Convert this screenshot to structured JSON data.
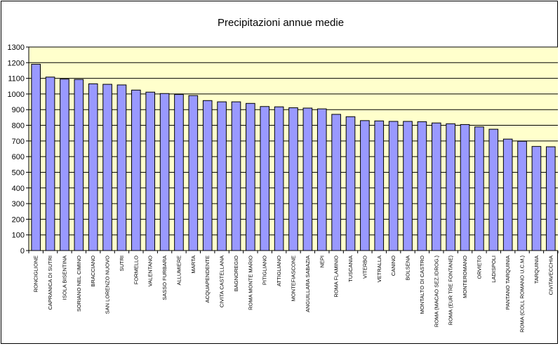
{
  "chart_data": {
    "type": "bar",
    "title": "Precipitazioni annue medie",
    "xlabel": "",
    "ylabel": "",
    "ylim": [
      0,
      1300
    ],
    "ytick_step": 100,
    "grid": true,
    "legend": "none",
    "colors": {
      "bar_fill": "#9999ff",
      "bar_stroke": "#000000",
      "plot_background": "#ffffcc",
      "gridline": "#000000"
    },
    "categories": [
      "RONCIGLIONE",
      "CAPRANICA DI SUTRI",
      "ISOLA BISENTINA",
      "SORIANO NEL CIMINO",
      "BRACCIANO",
      "SAN LORENZO NUOVO",
      "SUTRI",
      "FORMELLO",
      "VALENTANO",
      "SASSO FURBARA",
      "ALLUMIERE",
      "MARTA",
      "ACQUAPENDENTE",
      "CIVITA CASTELLANA",
      "BAGNOREGIO",
      "ROMA MONTE MARIO",
      "PITIGLIANO",
      "ATTIGLIANO",
      "MONTEFIASCONE",
      "ANGUILLARA SABAZIA",
      "NEPI",
      "ROMA FLAMINIO",
      "TUSCANIA",
      "VITERBO",
      "VETRALLA",
      "CANINO",
      "BOLSENA",
      "MONTALTO DI CASTRO",
      "ROMA (MACAO SEZ.IDROG.)",
      "ROMA (EUR TRE FONTANE)",
      "MONTEROMANO",
      "ORVIETO",
      "LADISPOLI",
      "PANTANO TARQUINIA",
      "ROMA (COLL ROMANO U.C.M.)",
      "TARQUINIA",
      "CIVITAVECCHIA"
    ],
    "values": [
      1190,
      1108,
      1095,
      1093,
      1065,
      1062,
      1058,
      1025,
      1012,
      1003,
      997,
      990,
      958,
      950,
      950,
      940,
      920,
      918,
      912,
      910,
      905,
      870,
      855,
      830,
      828,
      825,
      825,
      823,
      815,
      810,
      805,
      790,
      775,
      712,
      698,
      665,
      663
    ]
  }
}
